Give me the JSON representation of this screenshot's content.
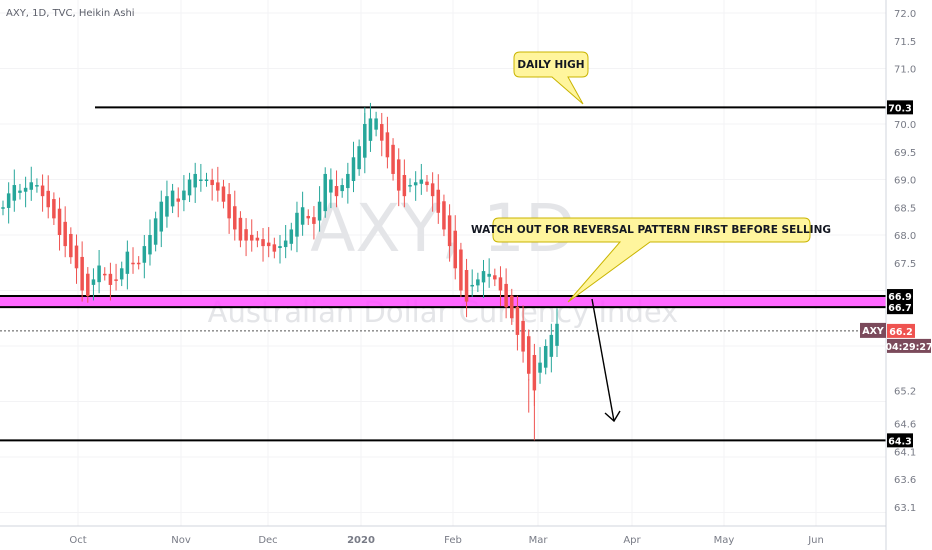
{
  "chart_data": {
    "type": "candlestick",
    "legend": "AXY, 1D, TVC, Heikin Ashi",
    "watermark": "AXY, 1D",
    "subtitle": "Australian Dollar Currency Index",
    "symbol": "AXY",
    "last_price": "66.2",
    "countdown": "04:29:27",
    "y_ticks": [
      "72.0",
      "71.5",
      "71.0",
      "70.0",
      "69.5",
      "69.0",
      "68.5",
      "68.0",
      "67.5",
      "65.2",
      "64.6",
      "64.1",
      "63.6",
      "63.1"
    ],
    "x_labels": [
      "Oct",
      "Nov",
      "Dec",
      "2020",
      "Feb",
      "Mar",
      "Apr",
      "May",
      "Jun"
    ],
    "levels": [
      {
        "value": 70.3,
        "label": "70.3"
      },
      {
        "value": 66.9,
        "label": "66.9"
      },
      {
        "value": 66.7,
        "label": "66.7"
      },
      {
        "value": 64.3,
        "label": "64.3"
      }
    ],
    "zone": {
      "from": 66.7,
      "to": 66.9,
      "color": "#ff4dff"
    },
    "annotations": [
      {
        "text": "DAILY HIGH"
      },
      {
        "text": "WATCH OUT FOR REVERSAL PATTERN FIRST BEFORE SELLING"
      }
    ],
    "colors": {
      "up": "#26a69a",
      "down": "#ef5350",
      "zone": "#ff4dff",
      "callout": "#fff59d",
      "last_tag": "#ef5350",
      "symbol_tag": "#7b4a5b"
    },
    "candles": {
      "start_date": "2019-09-01",
      "close": [
        68.5,
        68.75,
        68.9,
        68.8,
        68.85,
        68.95,
        68.9,
        68.7,
        68.5,
        68.3,
        68.0,
        67.8,
        67.6,
        67.4,
        67.0,
        66.9,
        67.2,
        67.45,
        67.3,
        67.1,
        67.2,
        67.4,
        67.7,
        67.5,
        67.5,
        67.8,
        68.0,
        68.3,
        68.6,
        68.7,
        68.8,
        68.6,
        68.8,
        69.0,
        69.1,
        69.0,
        69.0,
        68.9,
        68.8,
        68.6,
        68.3,
        68.1,
        67.9,
        67.9,
        67.9,
        67.9,
        67.8,
        67.8,
        67.7,
        67.8,
        67.9,
        68.1,
        68.4,
        68.5,
        68.3,
        68.2,
        68.6,
        69.1,
        69.0,
        68.7,
        68.9,
        69.1,
        69.4,
        69.6,
        70.0,
        70.1,
        70.1,
        69.7,
        69.4,
        69.1,
        68.8,
        68.7,
        68.9,
        68.95,
        69.0,
        68.9,
        68.7,
        68.4,
        68.1,
        67.8,
        67.4,
        67.0,
        66.8,
        67.1,
        67.2,
        67.35,
        67.3,
        67.2,
        67.0,
        66.7,
        66.5,
        66.2,
        65.9,
        65.5,
        65.2,
        65.7,
        66.0,
        66.2,
        66.4
      ]
    }
  }
}
